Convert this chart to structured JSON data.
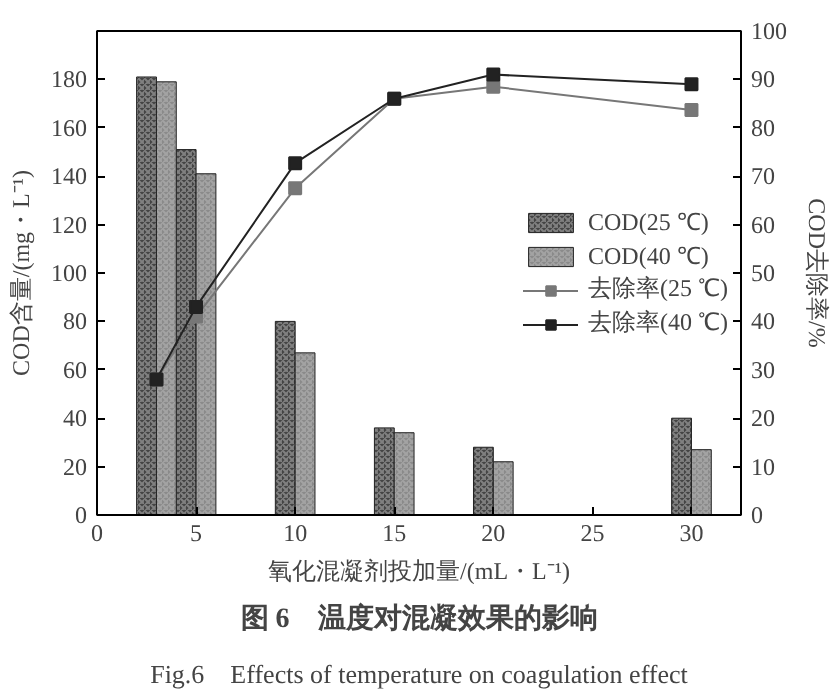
{
  "chart_data": {
    "type": "bar",
    "title": "图 6　温度对混凝效果的影响",
    "subtitle": "Fig.6　Effects of temperature on coagulation effect",
    "xlabel": "氧化混凝剂投加量/(mL・L⁻¹)",
    "ylabel": "COD含量/(mg・L⁻¹)",
    "y2label": "COD去除率/%",
    "x": [
      3,
      5,
      10,
      15,
      20,
      30
    ],
    "series": [
      {
        "name": "COD(25 ℃)",
        "color": "#444444",
        "values": [
          181,
          151,
          80,
          36,
          28,
          40
        ]
      },
      {
        "name": "COD(40 ℃)",
        "color": "#8a8a8a",
        "values": [
          179,
          141,
          67,
          34,
          22,
          27
        ]
      },
      {
        "name": "去除率(25 ℃)",
        "type": "line",
        "axis": "y2",
        "color": "#777777",
        "values": [
          28,
          41,
          67.5,
          86,
          88.5,
          83.7
        ]
      },
      {
        "name": "去除率(40 ℃)",
        "type": "line",
        "axis": "y2",
        "color": "#222222",
        "values": [
          28,
          43,
          72.7,
          86,
          91,
          89
        ]
      }
    ],
    "xlim": [
      0,
      32.5
    ],
    "xticks": [
      0,
      5,
      10,
      15,
      20,
      25,
      30
    ],
    "ylim": [
      0,
      200
    ],
    "yticks": [
      0,
      20,
      40,
      60,
      80,
      100,
      120,
      140,
      160,
      180
    ],
    "y2lim": [
      0,
      100
    ],
    "y2ticks": [
      0,
      10,
      20,
      30,
      40,
      50,
      60,
      70,
      80,
      90,
      100
    ],
    "marker": "square",
    "line_style": "solid",
    "grid": false,
    "legend": "right"
  }
}
